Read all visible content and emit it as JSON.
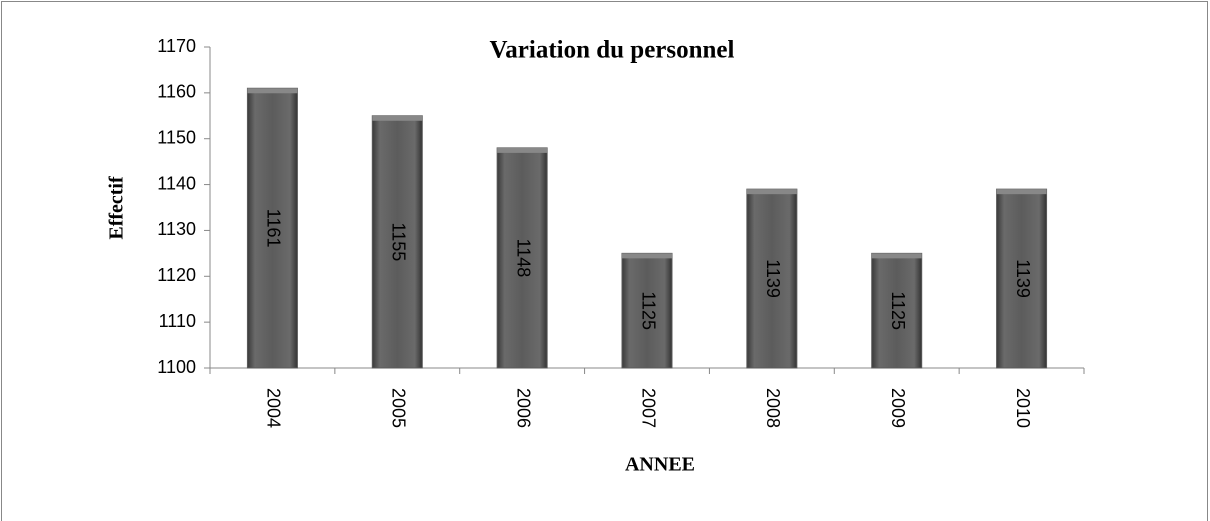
{
  "chart_data": {
    "type": "bar",
    "title": "Variation du personnel",
    "x_label": "ANNEE",
    "y_label": "Effectif",
    "categories": [
      "2004",
      "2005",
      "2006",
      "2007",
      "2008",
      "2009",
      "2010"
    ],
    "values": [
      1161,
      1155,
      1148,
      1125,
      1139,
      1125,
      1139
    ],
    "color": "#5a5a5a",
    "ylim": [
      1100,
      1170
    ],
    "yticks": [
      1100,
      1110,
      1120,
      1130,
      1140,
      1150,
      1160,
      1170
    ],
    "grid": false
  }
}
